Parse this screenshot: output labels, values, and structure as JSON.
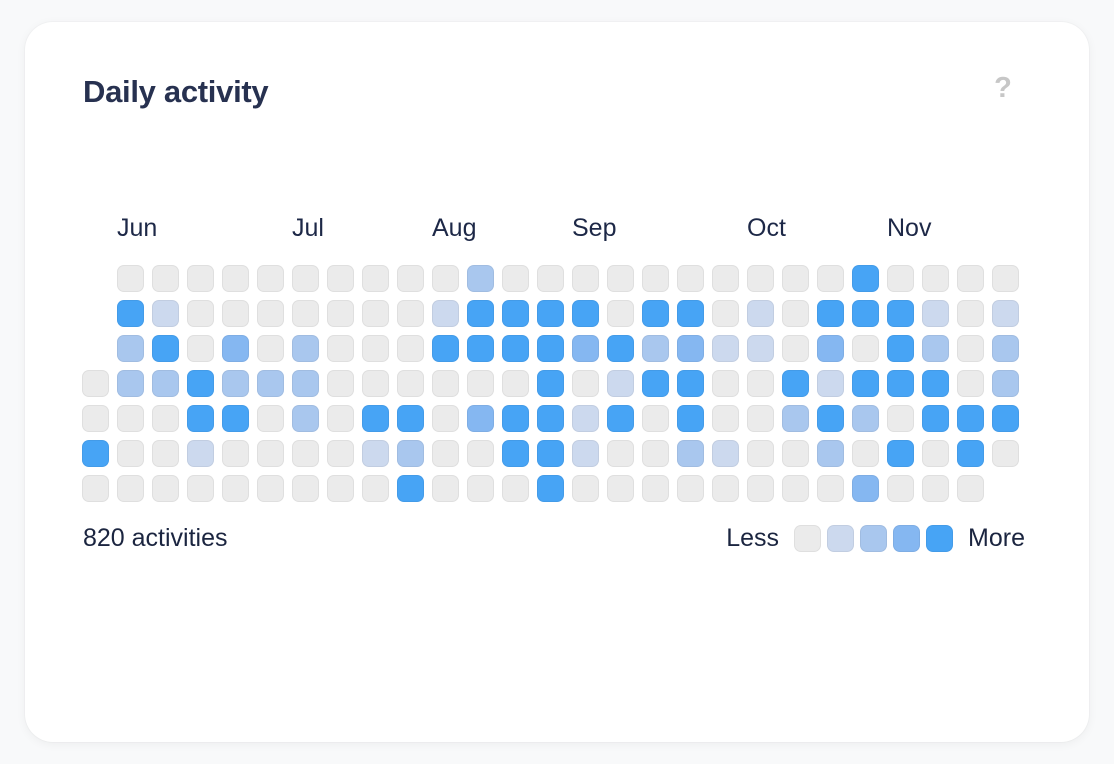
{
  "page": {
    "background": "#f8f9fa"
  },
  "card": {
    "title": "Daily activity",
    "help_icon": "?",
    "total_label": "820 activities",
    "legend": {
      "less": "Less",
      "more": "More"
    }
  },
  "colors": {
    "card_bg": "#ffffff",
    "title_text": "#273150",
    "label_text": "#1d2847",
    "help_icon": "#c7c7c7",
    "level0": "#ebebeb",
    "level1": "#ccd9ee",
    "level2": "#a9c7ee",
    "level3": "#85b7f1",
    "level4": "#47a4f5"
  },
  "chart_data": {
    "type": "heatmap",
    "title": "Daily activity",
    "total_label": "820 activities",
    "weeks": 27,
    "rows": 7,
    "legend_position": "bottom-right",
    "months": [
      {
        "label": "Jun",
        "week_index": 1
      },
      {
        "label": "Jul",
        "week_index": 6
      },
      {
        "label": "Aug",
        "week_index": 10
      },
      {
        "label": "Sep",
        "week_index": 14
      },
      {
        "label": "Oct",
        "week_index": 19
      },
      {
        "label": "Nov",
        "week_index": 23
      }
    ],
    "legend_levels": [
      0,
      1,
      2,
      3,
      4
    ],
    "level_colors": [
      "#ebebeb",
      "#ccd9ee",
      "#a9c7ee",
      "#85b7f1",
      "#47a4f5"
    ],
    "grid_rows": [
      [
        null,
        0,
        0,
        0,
        0,
        0,
        0,
        0,
        0,
        0,
        0,
        2,
        0,
        0,
        0,
        0,
        0,
        0,
        0,
        0,
        0,
        0,
        4,
        0,
        0,
        0,
        0
      ],
      [
        null,
        4,
        1,
        0,
        0,
        0,
        0,
        0,
        0,
        0,
        1,
        4,
        4,
        4,
        4,
        0,
        4,
        4,
        0,
        1,
        0,
        4,
        4,
        4,
        1,
        0,
        1
      ],
      [
        null,
        2,
        4,
        0,
        3,
        0,
        2,
        0,
        0,
        0,
        4,
        4,
        4,
        4,
        3,
        4,
        2,
        3,
        1,
        1,
        0,
        3,
        0,
        4,
        2,
        0,
        2
      ],
      [
        0,
        2,
        2,
        4,
        2,
        2,
        2,
        0,
        0,
        0,
        0,
        0,
        0,
        4,
        0,
        1,
        4,
        4,
        0,
        0,
        4,
        1,
        4,
        4,
        4,
        0,
        2
      ],
      [
        0,
        0,
        0,
        4,
        4,
        0,
        2,
        0,
        4,
        4,
        0,
        3,
        4,
        4,
        1,
        4,
        0,
        4,
        0,
        0,
        2,
        4,
        2,
        0,
        4,
        4,
        4
      ],
      [
        4,
        0,
        0,
        1,
        0,
        0,
        0,
        0,
        1,
        2,
        0,
        0,
        4,
        4,
        1,
        0,
        0,
        2,
        1,
        0,
        0,
        2,
        0,
        4,
        0,
        4,
        0
      ],
      [
        0,
        0,
        0,
        0,
        0,
        0,
        0,
        0,
        0,
        4,
        0,
        0,
        0,
        4,
        0,
        0,
        0,
        0,
        0,
        0,
        0,
        0,
        3,
        0,
        0,
        0,
        null
      ]
    ]
  }
}
